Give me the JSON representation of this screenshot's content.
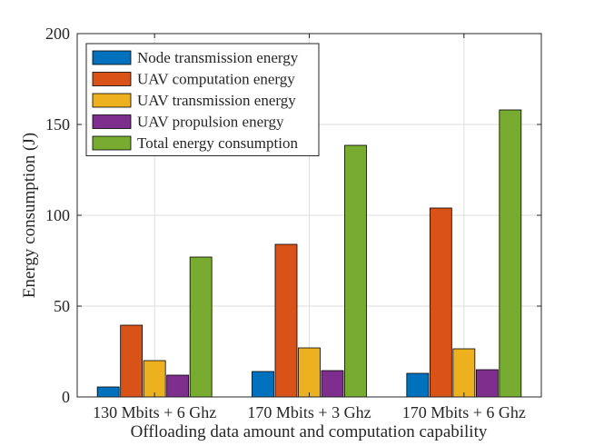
{
  "chart_data": {
    "type": "bar",
    "title": "",
    "xlabel": "Offloading data amount and computation capability",
    "ylabel": "Energy consumption (J)",
    "ylim": [
      0,
      200
    ],
    "yticks": [
      "0",
      "50",
      "100",
      "150",
      "200"
    ],
    "grid": true,
    "legend_position": "top-left",
    "categories": [
      "130 Mbits + 6 Ghz",
      "170 Mbits + 3 Ghz",
      "170 Mbits + 6 Ghz"
    ],
    "series": [
      {
        "name": "Node transmission energy",
        "color": "#0072BD",
        "values": [
          5.5,
          14,
          13
        ]
      },
      {
        "name": "UAV computation energy",
        "color": "#D95319",
        "values": [
          39.5,
          84,
          104
        ]
      },
      {
        "name": "UAV transmission energy",
        "color": "#EDB120",
        "values": [
          20,
          27,
          26.5
        ]
      },
      {
        "name": "UAV propulsion energy",
        "color": "#7E2F8E",
        "values": [
          12,
          14.5,
          15
        ]
      },
      {
        "name": "Total energy consumption",
        "color": "#77AC30",
        "values": [
          77,
          138.5,
          158
        ]
      }
    ]
  }
}
